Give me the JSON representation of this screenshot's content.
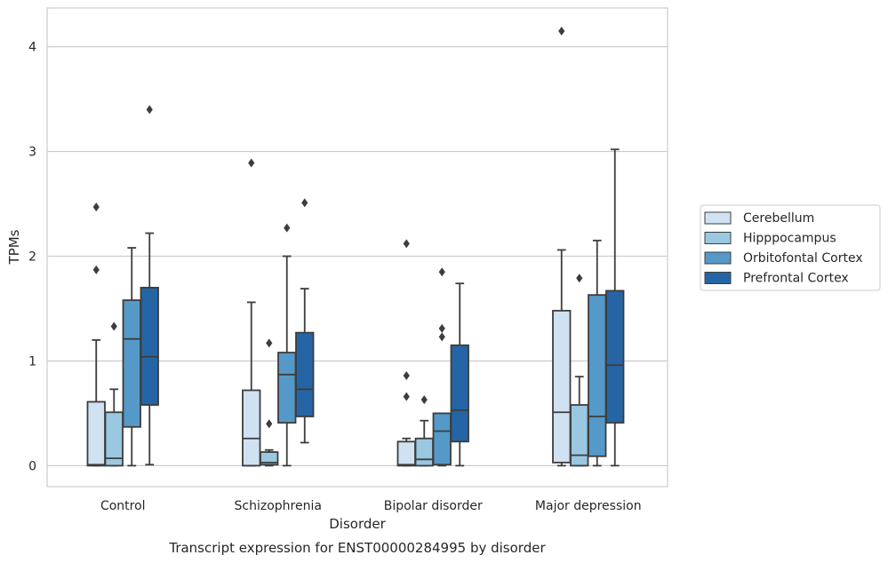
{
  "chart_data": {
    "type": "boxplot",
    "caption": "Transcript expression for ENST00000284995 by disorder",
    "xlabel": "Disorder",
    "ylabel": "TPMs",
    "ylim": [
      -0.2,
      4.37
    ],
    "yticks": [
      0,
      1,
      2,
      3,
      4
    ],
    "grid": "horizontal",
    "legend_position": "right",
    "categories": [
      "Control",
      "Schizophrenia",
      "Bipolar disorder",
      "Major depression"
    ],
    "series": [
      {
        "name": "Cerebellum",
        "color": "#d0e1f2",
        "boxes": [
          {
            "whislo": 0.0,
            "q1": 0.0,
            "med": 0.01,
            "q3": 0.61,
            "whishi": 1.2,
            "fliers": [
              1.87,
              2.47
            ]
          },
          {
            "whislo": 0.0,
            "q1": 0.0,
            "med": 0.26,
            "q3": 0.72,
            "whishi": 1.56,
            "fliers": [
              2.89
            ]
          },
          {
            "whislo": 0.0,
            "q1": 0.0,
            "med": 0.01,
            "q3": 0.23,
            "whishi": 0.26,
            "fliers": [
              0.66,
              0.86,
              2.12
            ]
          },
          {
            "whislo": 0.0,
            "q1": 0.03,
            "med": 0.51,
            "q3": 1.48,
            "whishi": 2.06,
            "fliers": [
              4.15
            ]
          }
        ]
      },
      {
        "name": "Hipppocampus",
        "color": "#9ac8e0",
        "boxes": [
          {
            "whislo": 0.0,
            "q1": 0.0,
            "med": 0.07,
            "q3": 0.51,
            "whishi": 0.73,
            "fliers": [
              1.33
            ]
          },
          {
            "whislo": 0.0,
            "q1": 0.01,
            "med": 0.03,
            "q3": 0.13,
            "whishi": 0.15,
            "fliers": [
              0.4,
              1.17
            ]
          },
          {
            "whislo": 0.0,
            "q1": 0.0,
            "med": 0.06,
            "q3": 0.26,
            "whishi": 0.43,
            "fliers": [
              0.63
            ]
          },
          {
            "whislo": 0.0,
            "q1": 0.0,
            "med": 0.1,
            "q3": 0.58,
            "whishi": 0.85,
            "fliers": [
              1.79
            ]
          }
        ]
      },
      {
        "name": "Orbitofontal Cortex",
        "color": "#5599c9",
        "boxes": [
          {
            "whislo": 0.0,
            "q1": 0.37,
            "med": 1.21,
            "q3": 1.58,
            "whishi": 2.08,
            "fliers": []
          },
          {
            "whislo": 0.0,
            "q1": 0.41,
            "med": 0.87,
            "q3": 1.08,
            "whishi": 2.0,
            "fliers": [
              2.27
            ]
          },
          {
            "whislo": 0.0,
            "q1": 0.01,
            "med": 0.33,
            "q3": 0.5,
            "whishi": 0.5,
            "fliers": [
              1.23,
              1.31,
              1.85
            ]
          },
          {
            "whislo": 0.0,
            "q1": 0.09,
            "med": 0.47,
            "q3": 1.63,
            "whishi": 2.15,
            "fliers": []
          }
        ]
      },
      {
        "name": "Prefrontal Cortex",
        "color": "#2565a5",
        "boxes": [
          {
            "whislo": 0.01,
            "q1": 0.58,
            "med": 1.04,
            "q3": 1.7,
            "whishi": 2.22,
            "fliers": [
              3.4
            ]
          },
          {
            "whislo": 0.22,
            "q1": 0.47,
            "med": 0.73,
            "q3": 1.27,
            "whishi": 1.69,
            "fliers": [
              2.51
            ]
          },
          {
            "whislo": 0.0,
            "q1": 0.23,
            "med": 0.53,
            "q3": 1.15,
            "whishi": 1.74,
            "fliers": []
          },
          {
            "whislo": 0.0,
            "q1": 0.41,
            "med": 0.96,
            "q3": 1.67,
            "whishi": 3.02,
            "fliers": []
          }
        ]
      }
    ]
  }
}
